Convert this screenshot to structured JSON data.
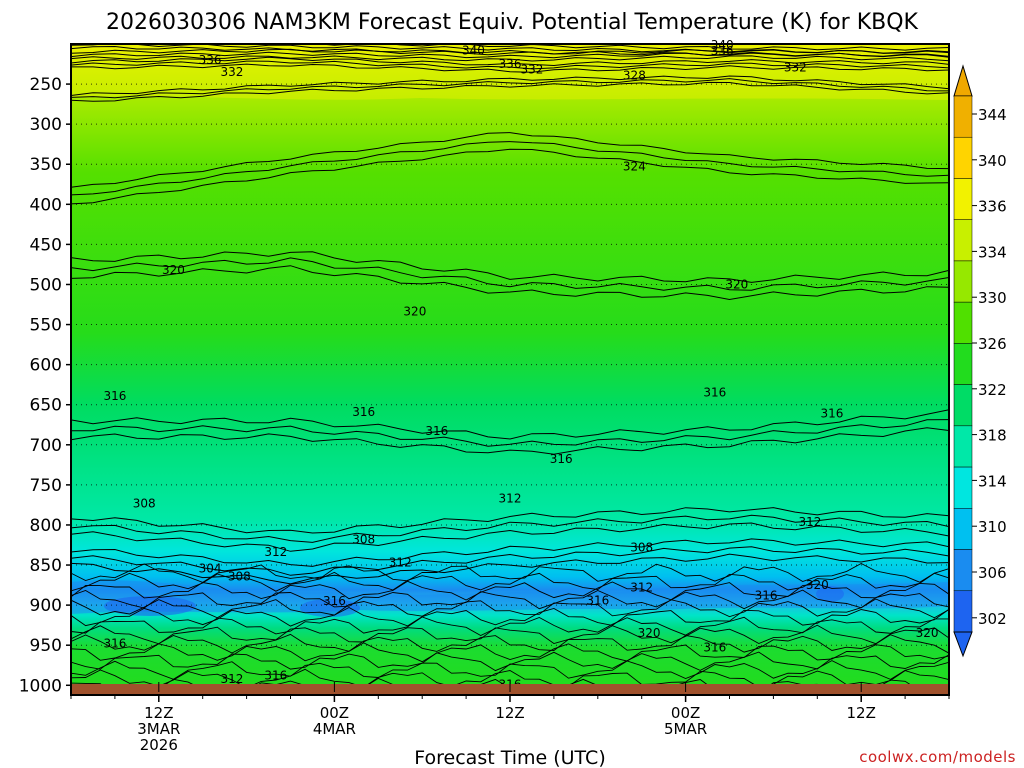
{
  "chart_data": {
    "type": "heatmap",
    "title": "2026030306 NAM3KM Forecast Equiv. Potential Temperature (K) for KBQK",
    "xlabel": "Forecast Time (UTC)",
    "ylabel": "",
    "credit": "coolwx.com/models",
    "x_ticks": [
      {
        "line1": "12Z",
        "line2": "3MAR",
        "line3": "2026",
        "hour": 6
      },
      {
        "line1": "00Z",
        "line2": "4MAR",
        "line3": "",
        "hour": 18
      },
      {
        "line1": "12Z",
        "line2": "",
        "line3": "",
        "hour": 30
      },
      {
        "line1": "00Z",
        "line2": "5MAR",
        "line3": "",
        "hour": 42
      },
      {
        "line1": "12Z",
        "line2": "",
        "line3": "",
        "hour": 54
      }
    ],
    "xlim_hours": [
      0,
      60
    ],
    "y_ticks": [
      250,
      300,
      350,
      400,
      450,
      500,
      550,
      600,
      650,
      700,
      750,
      800,
      850,
      900,
      950,
      1000
    ],
    "ylim_hpa": [
      1020,
      200
    ],
    "colorbar": {
      "labels": [
        344,
        340,
        336,
        334,
        330,
        326,
        322,
        318,
        314,
        310,
        306,
        302
      ],
      "colors": [
        "#f0b000",
        "#ffd400",
        "#f2f200",
        "#c8f000",
        "#96e800",
        "#50e000",
        "#22dc1e",
        "#00dc66",
        "#00e8a8",
        "#00e6e0",
        "#00c0f0",
        "#1a8cf0",
        "#1e64f0"
      ]
    },
    "contours": [
      {
        "label": "340",
        "hpa": [
          200,
          203,
          206,
          209,
          210
        ]
      },
      {
        "label": "336",
        "hpa": [
          214,
          212,
          216,
          212,
          215
        ]
      },
      {
        "label": "332",
        "hpa": [
          226,
          222,
          230,
          225,
          228
        ]
      },
      {
        "label": "328",
        "hpa": [
          268,
          255,
          248,
          245,
          258
        ]
      },
      {
        "label": "324",
        "hpa": [
          390,
          352,
          320,
          350,
          365
        ]
      },
      {
        "label": "320",
        "hpa": [
          480,
          470,
          500,
          505,
          495
        ]
      },
      {
        "label": "316",
        "hpa": [
          680,
          680,
          700,
          690,
          670
        ]
      },
      {
        "label": "312",
        "hpa": [
          800,
          820,
          800,
          790,
          800
        ]
      },
      {
        "label": "308",
        "hpa": [
          840,
          860,
          840,
          830,
          835
        ]
      }
    ],
    "contour_labels": [
      {
        "text": "340",
        "hour": 27.5,
        "hpa": 213
      },
      {
        "text": "340",
        "hour": 44.5,
        "hpa": 206
      },
      {
        "text": "336",
        "hour": 9.5,
        "hpa": 225
      },
      {
        "text": "336",
        "hour": 30,
        "hpa": 230
      },
      {
        "text": "336",
        "hour": 44.5,
        "hpa": 214
      },
      {
        "text": "332",
        "hour": 11,
        "hpa": 240
      },
      {
        "text": "332",
        "hour": 31.5,
        "hpa": 237
      },
      {
        "text": "332",
        "hour": 49.5,
        "hpa": 234
      },
      {
        "text": "328",
        "hour": 38.5,
        "hpa": 244
      },
      {
        "text": "324",
        "hour": 38.5,
        "hpa": 358
      },
      {
        "text": "320",
        "hour": 7,
        "hpa": 487
      },
      {
        "text": "320",
        "hour": 23.5,
        "hpa": 539
      },
      {
        "text": "320",
        "hour": 45.5,
        "hpa": 505
      },
      {
        "text": "316",
        "hour": 3,
        "hpa": 644
      },
      {
        "text": "316",
        "hour": 20,
        "hpa": 664
      },
      {
        "text": "316",
        "hour": 25,
        "hpa": 688
      },
      {
        "text": "316",
        "hour": 33.5,
        "hpa": 723
      },
      {
        "text": "316",
        "hour": 44,
        "hpa": 640
      },
      {
        "text": "316",
        "hour": 52,
        "hpa": 666
      },
      {
        "text": "316",
        "hour": 3,
        "hpa": 953
      },
      {
        "text": "316",
        "hour": 18,
        "hpa": 900
      },
      {
        "text": "316",
        "hour": 14,
        "hpa": 993
      },
      {
        "text": "316",
        "hour": 30,
        "hpa": 1004
      },
      {
        "text": "316",
        "hour": 36,
        "hpa": 899
      },
      {
        "text": "316",
        "hour": 44,
        "hpa": 958
      },
      {
        "text": "316",
        "hour": 47.5,
        "hpa": 893
      },
      {
        "text": "312",
        "hour": 30,
        "hpa": 772
      },
      {
        "text": "312",
        "hour": 50.5,
        "hpa": 801
      },
      {
        "text": "312",
        "hour": 14,
        "hpa": 839
      },
      {
        "text": "312",
        "hour": 22.5,
        "hpa": 852
      },
      {
        "text": "312",
        "hour": 39,
        "hpa": 883
      },
      {
        "text": "312",
        "hour": 11,
        "hpa": 997
      },
      {
        "text": "308",
        "hour": 5,
        "hpa": 778
      },
      {
        "text": "308",
        "hour": 20,
        "hpa": 823
      },
      {
        "text": "308",
        "hour": 11.5,
        "hpa": 869
      },
      {
        "text": "308",
        "hour": 39,
        "hpa": 833
      },
      {
        "text": "304",
        "hour": 9.5,
        "hpa": 859
      },
      {
        "text": "320",
        "hour": 39.5,
        "hpa": 940
      },
      {
        "text": "320",
        "hour": 51,
        "hpa": 880
      },
      {
        "text": "320",
        "hour": 58.5,
        "hpa": 940
      }
    ]
  }
}
